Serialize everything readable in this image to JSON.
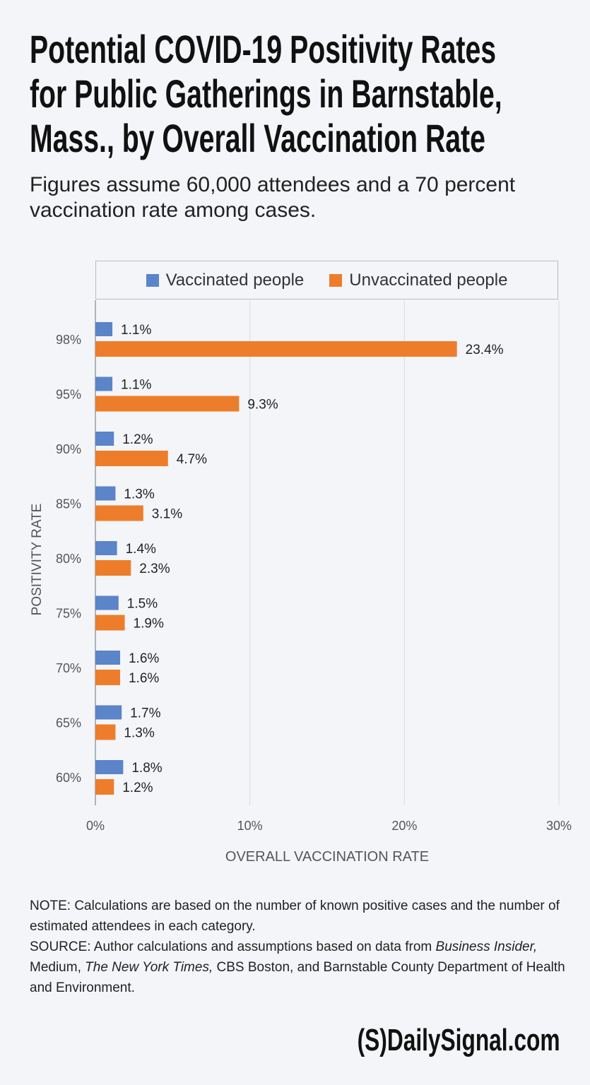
{
  "title_lines": [
    "Potential COVID-19 Positivity Rates",
    "for Public Gatherings in Barnstable,",
    "Mass., by Overall Vaccination Rate"
  ],
  "subtitle": "Figures assume 60,000 attendees and a 70 percent vaccination rate among cases.",
  "colors": {
    "vaccinated": "#5b84c9",
    "unvaccinated": "#ed7d2b",
    "grid": "#d9dce0",
    "background": "#f3f5f8"
  },
  "chart_data": {
    "type": "bar",
    "orientation": "horizontal",
    "categories": [
      "98%",
      "95%",
      "90%",
      "85%",
      "80%",
      "75%",
      "70%",
      "65%",
      "60%"
    ],
    "series": [
      {
        "name": "Vaccinated people",
        "values": [
          1.1,
          1.1,
          1.2,
          1.3,
          1.4,
          1.5,
          1.6,
          1.7,
          1.8
        ],
        "labels": [
          "1.1%",
          "1.1%",
          "1.2%",
          "1.3%",
          "1.4%",
          "1.5%",
          "1.6%",
          "1.7%",
          "1.8%"
        ]
      },
      {
        "name": "Unvaccinated people",
        "values": [
          23.4,
          9.3,
          4.7,
          3.1,
          2.3,
          1.9,
          1.6,
          1.3,
          1.2
        ],
        "labels": [
          "23.4%",
          "9.3%",
          "4.7%",
          "3.1%",
          "2.3%",
          "1.9%",
          "1.6%",
          "1.3%",
          "1.2%"
        ]
      }
    ],
    "xlim": [
      0,
      30
    ],
    "xticks": [
      0,
      10,
      20,
      30
    ],
    "xtick_labels": [
      "0%",
      "10%",
      "20%",
      "30%"
    ],
    "xlabel": "OVERALL VACCINATION RATE",
    "ylabel": "POSITIVITY RATE",
    "legend": "top",
    "grid": true
  },
  "notes": {
    "note": "NOTE: Calculations are based on the number of known positive cases and the number of estimated attendees in each category.",
    "source_prefix": "SOURCE: Author calculations and assumptions based on data from ",
    "source_bi": "Business Insider,",
    "source_mid1": " Medium, ",
    "source_nyt": "The New York Times,",
    "source_end": " CBS Boston, and Barnstable County Department of Health and Environment."
  },
  "logo": "(S)DailySignal.com"
}
